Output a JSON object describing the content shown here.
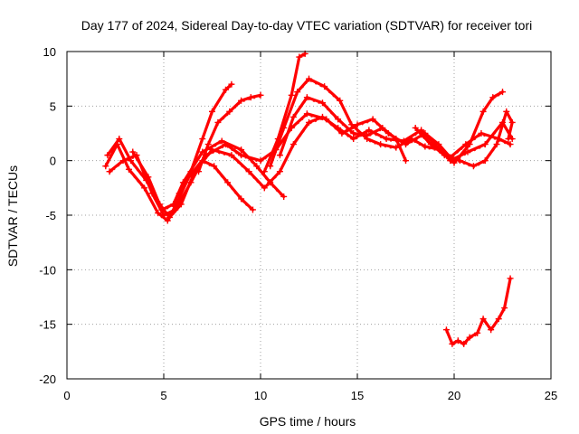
{
  "chart_data": {
    "type": "line",
    "title": "Day 177 of 2024, Sidereal Day-to-day VTEC variation (SDTVAR) for receiver tori",
    "xlabel": "GPS time / hours",
    "ylabel": "SDTVAR / TECUs",
    "xlim": [
      0,
      25
    ],
    "ylim": [
      -20,
      10
    ],
    "xticks": [
      0,
      5,
      10,
      15,
      20,
      25
    ],
    "yticks": [
      -20,
      -15,
      -10,
      -5,
      0,
      5,
      10
    ],
    "grid": true,
    "marker": "+",
    "series_color": "#ff0000",
    "series": [
      {
        "name": "track-1",
        "points": [
          [
            2.0,
            -0.5
          ],
          [
            2.6,
            1.5
          ],
          [
            3.2,
            -0.8
          ],
          [
            4.0,
            -2.5
          ],
          [
            4.7,
            -4.8
          ],
          [
            5.2,
            -5.5
          ],
          [
            5.7,
            -3.8
          ],
          [
            6.3,
            -1.5
          ],
          [
            7.2,
            0.5
          ],
          [
            8.2,
            1.5
          ],
          [
            9.0,
            0.5
          ],
          [
            10.0,
            0.0
          ],
          [
            10.8,
            1.0
          ],
          [
            11.6,
            3.0
          ],
          [
            12.4,
            4.3
          ],
          [
            13.4,
            3.8
          ],
          [
            14.2,
            2.5
          ],
          [
            15.0,
            3.3
          ],
          [
            15.8,
            3.8
          ],
          [
            16.6,
            2.5
          ],
          [
            17.5,
            1.5
          ],
          [
            18.5,
            2.5
          ],
          [
            19.2,
            1.5
          ],
          [
            19.8,
            0.3
          ],
          [
            20.6,
            1.5
          ],
          [
            21.4,
            2.5
          ],
          [
            22.3,
            2.0
          ],
          [
            22.9,
            1.5
          ]
        ]
      },
      {
        "name": "track-2",
        "points": [
          [
            2.1,
            0.5
          ],
          [
            2.7,
            2.0
          ],
          [
            3.3,
            0.0
          ],
          [
            4.1,
            -1.8
          ],
          [
            4.8,
            -4.0
          ],
          [
            5.3,
            -5.2
          ],
          [
            5.9,
            -4.0
          ],
          [
            6.6,
            -1.0
          ],
          [
            7.5,
            1.0
          ],
          [
            8.5,
            0.5
          ],
          [
            9.4,
            -1.0
          ],
          [
            10.2,
            -2.5
          ],
          [
            11.0,
            -1.0
          ],
          [
            11.7,
            1.5
          ],
          [
            12.5,
            3.5
          ],
          [
            13.2,
            4.0
          ],
          [
            14.0,
            3.0
          ],
          [
            14.8,
            2.0
          ],
          [
            15.6,
            2.8
          ],
          [
            16.5,
            2.0
          ],
          [
            17.4,
            1.8
          ],
          [
            18.3,
            2.8
          ],
          [
            19.0,
            1.5
          ],
          [
            19.8,
            0.0
          ],
          [
            20.7,
            0.8
          ],
          [
            21.6,
            1.5
          ],
          [
            22.5,
            3.5
          ],
          [
            23.0,
            2.0
          ]
        ]
      },
      {
        "name": "track-3",
        "points": [
          [
            2.2,
            -1.0
          ],
          [
            2.9,
            0.0
          ],
          [
            3.6,
            0.5
          ],
          [
            4.4,
            -3.0
          ],
          [
            5.0,
            -5.0
          ],
          [
            5.6,
            -4.5
          ],
          [
            6.4,
            -2.0
          ],
          [
            7.0,
            0.0
          ],
          [
            7.6,
            -0.5
          ],
          [
            8.3,
            -2.0
          ],
          [
            9.0,
            -3.5
          ],
          [
            9.6,
            -4.5
          ]
        ]
      },
      {
        "name": "track-4",
        "points": [
          [
            3.4,
            0.8
          ],
          [
            4.2,
            -1.5
          ],
          [
            4.9,
            -4.5
          ],
          [
            5.5,
            -4.0
          ],
          [
            6.0,
            -2.0
          ],
          [
            7.0,
            0.8
          ],
          [
            8.0,
            1.8
          ],
          [
            9.0,
            1.0
          ],
          [
            9.8,
            -0.5
          ],
          [
            10.5,
            -2.0
          ],
          [
            11.2,
            -3.3
          ]
        ]
      },
      {
        "name": "track-5",
        "points": [
          [
            5.8,
            -3.0
          ],
          [
            6.4,
            -1.0
          ],
          [
            7.0,
            2.0
          ],
          [
            7.5,
            4.5
          ],
          [
            8.2,
            6.5
          ],
          [
            8.5,
            7.0
          ]
        ]
      },
      {
        "name": "track-6",
        "points": [
          [
            6.8,
            -1.0
          ],
          [
            7.3,
            1.5
          ],
          [
            7.8,
            3.5
          ],
          [
            8.4,
            4.5
          ],
          [
            9.0,
            5.5
          ],
          [
            9.5,
            5.8
          ],
          [
            10.0,
            6.0
          ]
        ]
      },
      {
        "name": "track-7",
        "points": [
          [
            10.2,
            -1.0
          ],
          [
            10.9,
            2.0
          ],
          [
            11.6,
            6.0
          ],
          [
            12.0,
            9.5
          ],
          [
            12.3,
            9.8
          ]
        ]
      },
      {
        "name": "track-8",
        "points": [
          [
            10.5,
            -0.5
          ],
          [
            11.2,
            3.0
          ],
          [
            11.9,
            6.3
          ],
          [
            12.5,
            7.5
          ],
          [
            13.3,
            6.8
          ],
          [
            14.1,
            5.5
          ],
          [
            14.7,
            3.3
          ],
          [
            15.5,
            2.0
          ],
          [
            16.2,
            1.5
          ],
          [
            17.0,
            1.2
          ],
          [
            17.8,
            2.0
          ],
          [
            18.5,
            1.3
          ],
          [
            19.3,
            1.0
          ],
          [
            20.0,
            -0.2
          ],
          [
            20.8,
            1.5
          ],
          [
            21.5,
            4.5
          ],
          [
            22.0,
            5.8
          ],
          [
            22.5,
            6.3
          ]
        ]
      },
      {
        "name": "track-9",
        "points": [
          [
            11.0,
            0.5
          ],
          [
            11.7,
            4.0
          ],
          [
            12.4,
            5.8
          ],
          [
            13.2,
            5.3
          ],
          [
            14.0,
            3.8
          ],
          [
            14.8,
            2.5
          ],
          [
            15.5,
            2.3
          ],
          [
            16.3,
            3.0
          ],
          [
            17.0,
            2.0
          ],
          [
            17.5,
            0.0
          ]
        ]
      },
      {
        "name": "track-10",
        "points": [
          [
            18.0,
            3.0
          ],
          [
            18.8,
            1.5
          ],
          [
            19.5,
            0.5
          ],
          [
            20.3,
            0.0
          ],
          [
            21.0,
            -0.5
          ],
          [
            21.6,
            0.0
          ],
          [
            22.2,
            1.5
          ],
          [
            22.7,
            4.5
          ],
          [
            23.0,
            3.5
          ],
          [
            22.8,
            2.0
          ]
        ]
      },
      {
        "name": "track-11",
        "points": [
          [
            19.6,
            -15.5
          ],
          [
            19.9,
            -16.8
          ],
          [
            20.2,
            -16.5
          ],
          [
            20.5,
            -16.8
          ],
          [
            20.8,
            -16.2
          ],
          [
            21.2,
            -15.8
          ],
          [
            21.5,
            -14.5
          ],
          [
            21.9,
            -15.5
          ],
          [
            22.3,
            -14.5
          ],
          [
            22.6,
            -13.5
          ],
          [
            22.9,
            -10.8
          ]
        ]
      }
    ]
  }
}
